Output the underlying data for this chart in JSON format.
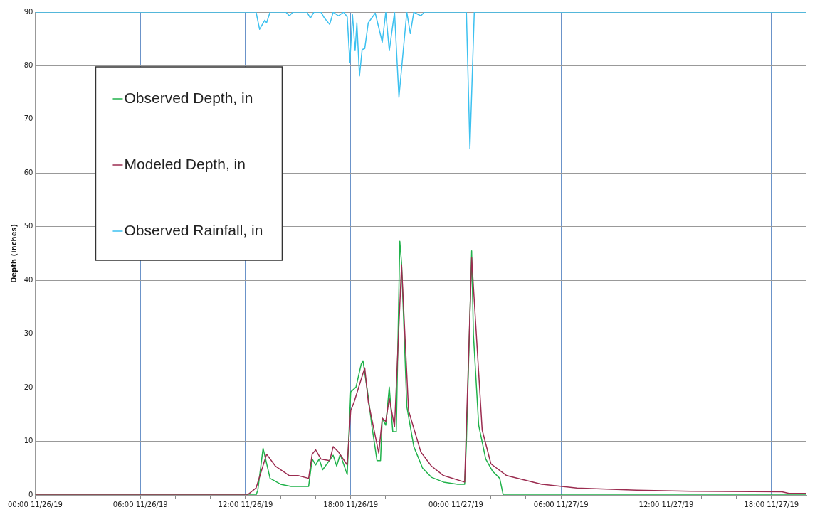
{
  "chart_data": {
    "type": "line",
    "ylabel": "Depth (inches)",
    "xlim": [
      "--11-26T00:00",
      "--11-27T20:00"
    ],
    "ylim": [
      0,
      90
    ],
    "yticks": [
      0,
      10,
      20,
      30,
      40,
      50,
      60,
      70,
      80,
      90
    ],
    "xticks": [
      {
        "value": "--11-26T00:00",
        "label": "00:00 11/26/19"
      },
      {
        "value": "--11-26T02:00",
        "label": null
      },
      {
        "value": "--11-26T04:00",
        "label": null
      },
      {
        "value": "--11-26T06:00",
        "label": "06:00 11/26/19"
      },
      {
        "value": "--11-26T08:00",
        "label": null
      },
      {
        "value": "--11-26T10:00",
        "label": null
      },
      {
        "value": "--11-26T12:00",
        "label": "12:00 11/26/19"
      },
      {
        "value": "--11-26T14:00",
        "label": null
      },
      {
        "value": "--11-26T16:00",
        "label": null
      },
      {
        "value": "--11-26T18:00",
        "label": "18:00 11/26/19"
      },
      {
        "value": "--11-26T20:00",
        "label": null
      },
      {
        "value": "--11-26T22:00",
        "label": null
      },
      {
        "value": "--11-27T00:00",
        "label": "00:00 11/27/19"
      },
      {
        "value": "--11-27T02:00",
        "label": null
      },
      {
        "value": "--11-27T04:00",
        "label": null
      },
      {
        "value": "--11-27T06:00",
        "label": "06:00 11/27/19"
      },
      {
        "value": "--11-27T08:00",
        "label": null
      },
      {
        "value": "--11-27T10:00",
        "label": null
      },
      {
        "value": "--11-27T12:00",
        "label": "12:00 11/27/19"
      },
      {
        "value": "--11-27T14:00",
        "label": null
      },
      {
        "value": "--11-27T16:00",
        "label": null
      },
      {
        "value": "--11-27T18:00",
        "label": "18:00 11/27/19"
      }
    ],
    "grid": true,
    "legend": "top left",
    "marker": "none",
    "line_style": "solid",
    "series": [
      {
        "name": "Observed Depth, in",
        "color": "#21b24b",
        "x": [
          "--11-26T00:00",
          "--11-26T12:36",
          "--11-26T12:42",
          "--11-26T13:00",
          "--11-26T13:24",
          "--11-26T14:00",
          "--11-26T14:36",
          "--11-26T15:36",
          "--11-26T15:48",
          "--11-26T16:00",
          "--11-26T16:12",
          "--11-26T16:24",
          "--11-26T17:00",
          "--11-26T17:12",
          "--11-26T17:24",
          "--11-26T17:48",
          "--11-26T18:00",
          "--11-26T18:18",
          "--11-26T18:36",
          "--11-26T18:42",
          "--11-26T19:00",
          "--11-26T19:12",
          "--11-26T19:30",
          "--11-26T19:42",
          "--11-26T19:48",
          "--11-26T20:00",
          "--11-26T20:12",
          "--11-26T20:24",
          "--11-26T20:36",
          "--11-26T20:48",
          "--11-26T20:54",
          "--11-26T21:12",
          "--11-26T21:36",
          "--11-26T22:06",
          "--11-26T22:36",
          "--11-26T23:18",
          "--11-27T00:06",
          "--11-27T00:30",
          "--11-27T00:36",
          "--11-27T00:54",
          "--11-27T01:00",
          "--11-27T01:18",
          "--11-27T01:42",
          "--11-27T02:06",
          "--11-27T02:30",
          "--11-27T02:42",
          "--11-27T20:00"
        ],
        "values": [
          0,
          0,
          0.9,
          8.7,
          3.1,
          2.0,
          1.6,
          1.6,
          6.7,
          5.6,
          6.7,
          4.7,
          7.4,
          5.4,
          7.6,
          3.8,
          19.2,
          20.1,
          24.4,
          25.0,
          18.3,
          13.0,
          6.4,
          6.4,
          14.3,
          13.0,
          20.1,
          11.8,
          11.8,
          47.3,
          43.3,
          16.5,
          9.0,
          5.0,
          3.3,
          2.4,
          2.0,
          2.0,
          9.8,
          45.5,
          29.9,
          13.0,
          6.7,
          4.4,
          3.1,
          0,
          0
        ]
      },
      {
        "name": "Modeled Depth, in",
        "color": "#9b2c50",
        "x": [
          "--11-26T00:00",
          "--11-26T12:06",
          "--11-26T12:36",
          "--11-26T13:12",
          "--11-26T13:42",
          "--11-26T14:30",
          "--11-26T15:00",
          "--11-26T15:36",
          "--11-26T15:48",
          "--11-26T16:00",
          "--11-26T16:18",
          "--11-26T16:48",
          "--11-26T17:00",
          "--11-26T17:18",
          "--11-26T17:48",
          "--11-26T18:00",
          "--11-26T18:12",
          "--11-26T18:48",
          "--11-26T19:00",
          "--11-26T19:36",
          "--11-26T19:48",
          "--11-26T20:00",
          "--11-26T20:12",
          "--11-26T20:30",
          "--11-26T20:54",
          "--11-26T21:18",
          "--11-26T22:00",
          "--11-26T22:36",
          "--11-26T23:18",
          "--11-27T00:30",
          "--11-27T00:54",
          "--11-27T01:30",
          "--11-27T02:00",
          "--11-27T02:54",
          "--11-27T04:54",
          "--11-27T06:54",
          "--11-27T10:18",
          "--11-27T13:24",
          "--11-27T18:36",
          "--11-27T19:00",
          "--11-27T20:00"
        ],
        "values": [
          0,
          0,
          1.3,
          7.6,
          5.4,
          3.6,
          3.6,
          3.1,
          7.6,
          8.4,
          6.7,
          6.4,
          9.0,
          8.0,
          5.6,
          15.7,
          17.4,
          23.7,
          17.4,
          7.8,
          14.3,
          13.7,
          18.0,
          12.7,
          42.9,
          15.7,
          8.0,
          5.4,
          3.6,
          2.4,
          44.2,
          12.1,
          5.8,
          3.6,
          2.0,
          1.3,
          0.9,
          0.7,
          0.6,
          0.3,
          0.3
        ]
      },
      {
        "name": "Observed Rainfall, in",
        "color": "#3cc1f0",
        "x": [
          "--11-26T00:00",
          "--11-26T12:36",
          "--11-26T12:48",
          "--11-26T13:06",
          "--11-26T13:12",
          "--11-26T13:24",
          "--11-26T14:18",
          "--11-26T14:30",
          "--11-26T14:42",
          "--11-26T15:30",
          "--11-26T15:42",
          "--11-26T15:54",
          "--11-26T16:18",
          "--11-26T16:30",
          "--11-26T16:48",
          "--11-26T17:00",
          "--11-26T17:18",
          "--11-26T17:36",
          "--11-26T17:48",
          "--11-26T17:57",
          "--11-26T18:06",
          "--11-26T18:15",
          "--11-26T18:21",
          "--11-26T18:30",
          "--11-26T18:39",
          "--11-26T18:48",
          "--11-26T19:00",
          "--11-26T19:12",
          "--11-26T19:24",
          "--11-26T19:48",
          "--11-26T20:00",
          "--11-26T20:12",
          "--11-26T20:30",
          "--11-26T20:45",
          "--11-26T21:12",
          "--11-26T21:24",
          "--11-26T21:36",
          "--11-26T22:00",
          "--11-26T22:12",
          "--11-27T00:36",
          "--11-27T00:48",
          "--11-27T01:03",
          "--11-27T20:00"
        ],
        "values": [
          90,
          90,
          86.8,
          88.5,
          88.0,
          90,
          90,
          89.3,
          90,
          90,
          88.9,
          90,
          90,
          88.9,
          87.7,
          90,
          89.3,
          90,
          89.1,
          80.6,
          89.5,
          82.8,
          88.0,
          78.1,
          83.0,
          83.2,
          88.0,
          88.9,
          89.8,
          84.4,
          90,
          82.8,
          90,
          74.1,
          90,
          86.0,
          90,
          89.3,
          90,
          90,
          64.5,
          90,
          90
        ]
      }
    ]
  }
}
